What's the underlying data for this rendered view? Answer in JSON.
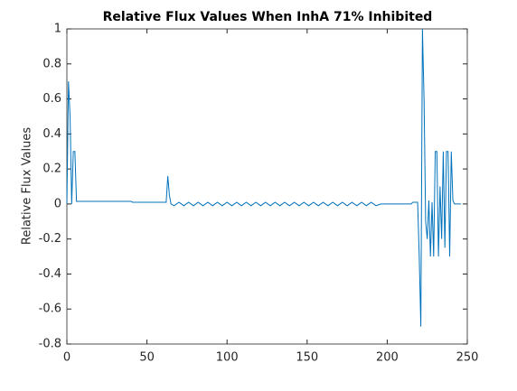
{
  "chart_data": {
    "type": "line",
    "title": "Relative Flux Values When InhA 71% Inhibited",
    "y_label": "Relative Flux Values",
    "xlim": [
      0,
      250
    ],
    "xticks": [
      0,
      50,
      100,
      150,
      200,
      250
    ],
    "ylim": [
      -0.8,
      1
    ],
    "yticks": [
      -0.8,
      -0.6,
      -0.4,
      -0.2,
      0,
      0.2,
      0.4,
      0.6,
      0.8,
      1
    ],
    "grid": false,
    "series": [
      {
        "name": "Relative Flux",
        "color": "#0072bd",
        "x": [
          0,
          1,
          2,
          3,
          4,
          5,
          6,
          40,
          41,
          62,
          63,
          64,
          65,
          67,
          70,
          73,
          76,
          79,
          82,
          85,
          88,
          91,
          94,
          97,
          100,
          103,
          106,
          109,
          112,
          115,
          118,
          121,
          124,
          127,
          130,
          133,
          136,
          139,
          142,
          145,
          148,
          151,
          154,
          157,
          160,
          163,
          166,
          169,
          172,
          175,
          178,
          181,
          184,
          187,
          190,
          193,
          196,
          215,
          216,
          219,
          220,
          221,
          222,
          223,
          224,
          225,
          226,
          227,
          228,
          229,
          230,
          231,
          232,
          233,
          234,
          235,
          236,
          237,
          238,
          239,
          240,
          241,
          242,
          246
        ],
        "values": [
          0,
          0.7,
          0.5,
          0,
          0.3,
          0.3,
          0.015,
          0.015,
          0.01,
          0.01,
          0.16,
          0.05,
          0,
          -0.01,
          0.01,
          -0.01,
          0.01,
          -0.01,
          0.01,
          -0.01,
          0.01,
          -0.01,
          0.01,
          -0.01,
          0.01,
          -0.01,
          0.01,
          -0.01,
          0.01,
          -0.01,
          0.01,
          -0.01,
          0.01,
          -0.01,
          0.01,
          -0.01,
          0.01,
          -0.01,
          0.01,
          -0.01,
          0.01,
          -0.01,
          0.01,
          -0.01,
          0.01,
          -0.01,
          0.01,
          -0.01,
          0.01,
          -0.01,
          0.01,
          -0.01,
          0.01,
          -0.01,
          0.01,
          -0.01,
          0,
          0,
          0.01,
          0.01,
          -0.3,
          -0.7,
          1,
          0.6,
          -0.1,
          -0.2,
          0.02,
          -0.3,
          0.01,
          -0.3,
          0.3,
          0.3,
          -0.3,
          0.1,
          -0.2,
          0.3,
          -0.25,
          0.3,
          0.3,
          -0.3,
          0.3,
          0.02,
          0,
          0
        ]
      }
    ]
  }
}
